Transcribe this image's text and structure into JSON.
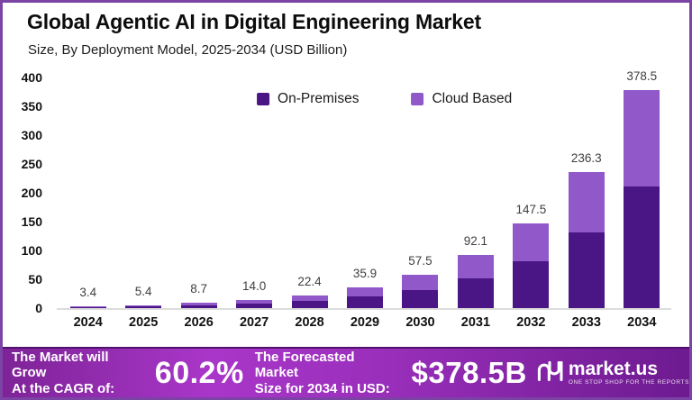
{
  "header": {
    "title": "Global Agentic AI in Digital Engineering Market",
    "subtitle": "Size, By Deployment Model, 2025-2034 (USD Billion)"
  },
  "chart_data": {
    "type": "bar",
    "stacked": true,
    "categories": [
      "2024",
      "2025",
      "2026",
      "2027",
      "2028",
      "2029",
      "2030",
      "2031",
      "2032",
      "2033",
      "2034"
    ],
    "series": [
      {
        "name": "On-Premises",
        "color": "#4a1585",
        "values": [
          1.9,
          3.0,
          4.8,
          7.8,
          12.5,
          20.0,
          32.0,
          51.2,
          82.0,
          131.4,
          210.4
        ]
      },
      {
        "name": "Cloud Based",
        "color": "#9158ca",
        "values": [
          1.5,
          2.4,
          3.9,
          6.2,
          9.9,
          15.9,
          25.5,
          40.9,
          65.5,
          104.9,
          168.1
        ]
      }
    ],
    "totals_labels": [
      "3.4",
      "5.4",
      "8.7",
      "14.0",
      "22.4",
      "35.9",
      "57.5",
      "92.1",
      "147.5",
      "236.3",
      "378.5"
    ],
    "xlabel": "",
    "ylabel": "",
    "ylim": [
      0,
      400
    ],
    "yticks": [
      0,
      50,
      100,
      150,
      200,
      250,
      300,
      350,
      400
    ],
    "grid": false,
    "legend_position": "top-center"
  },
  "footer": {
    "left_line1": "The Market will Grow",
    "left_line2": "At the CAGR of:",
    "cagr": "60.2%",
    "mid_line1": "The Forecasted Market",
    "mid_line2": "Size for 2034 in USD:",
    "forecast": "$378.5B",
    "brand": "market.us",
    "tagline": "ONE STOP SHOP FOR THE REPORTS"
  },
  "colors": {
    "frame_border": "#7b43a4",
    "on_premises": "#4a1585",
    "cloud_based": "#9158ca",
    "footer_gradient_left": "#7e2397",
    "footer_gradient_mid": "#a936c9",
    "footer_gradient_right": "#6d1a90"
  }
}
